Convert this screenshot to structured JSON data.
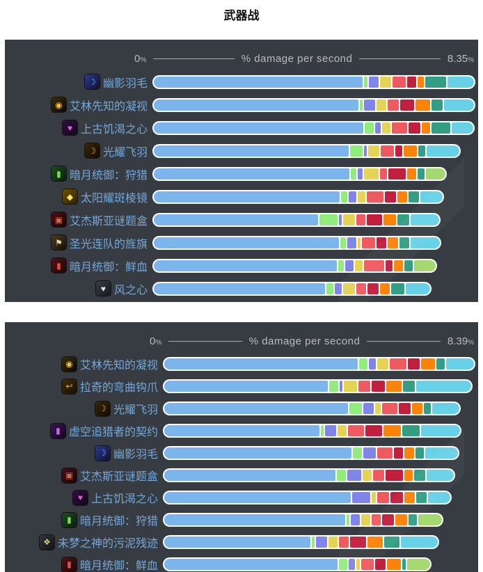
{
  "page": {
    "title": "武器战"
  },
  "chart_data": [
    {
      "type": "bar",
      "title": "% damage per second",
      "axis": {
        "min_label": "0",
        "max_label": "8.35",
        "suffix": "%"
      },
      "xlim": [
        0,
        8.35
      ],
      "grid": false,
      "legend": "none",
      "orientation": "horizontal-stacked",
      "palette": [
        "#7cb5ec",
        "#90ed7d",
        "#8085e9",
        "#e4d354",
        "#ef5a60",
        "#c11f3e",
        "#fb8309",
        "#349e84",
        "#68d1e7"
      ],
      "accent_colors": {
        "bar_border": "#ffffff",
        "background": "#373c42",
        "label": "#74a7d8",
        "axis_text": "#b9bcbe",
        "alt_last_segment": "#a6d871"
      },
      "items": [
        {
          "label": "幽影羽毛",
          "icon": {
            "name": "shadow-feather-icon",
            "glyph": "☽",
            "bg": "linear-gradient(135deg,#2a3c8f,#0c1130)",
            "fg": "#7db5f5"
          },
          "values": [
            5.44,
            0.14,
            0.29,
            0.32,
            0.38,
            0.27,
            0.2,
            0.58,
            0.72
          ]
        },
        {
          "label": "艾林先知的凝视",
          "icon": {
            "name": "seers-gaze-icon",
            "glyph": "◉",
            "bg": "linear-gradient(135deg,#3b2c0a,#0b0a08)",
            "fg": "#f5c33b"
          },
          "values": [
            5.34,
            0.11,
            0.32,
            0.29,
            0.32,
            0.41,
            0.4,
            0.34,
            0.81
          ]
        },
        {
          "label": "上古饥渴之心",
          "icon": {
            "name": "hungering-heart-icon",
            "glyph": "♥",
            "bg": "linear-gradient(135deg,#31103f,#12051c)",
            "fg": "#e95bd0"
          },
          "values": [
            5.46,
            0.27,
            0.18,
            0.25,
            0.45,
            0.34,
            0.25,
            0.52,
            0.6
          ]
        },
        {
          "label": "光耀飞羽",
          "icon": {
            "name": "radiant-feather-icon",
            "glyph": "☽",
            "bg": "linear-gradient(135deg,#3a2605,#120b02)",
            "fg": "#f2b13a"
          },
          "values": [
            5.09,
            0.36,
            0.09,
            0.32,
            0.38,
            0.22,
            0.38,
            0.22,
            0.87
          ]
        },
        {
          "label": "暗月统御：狩猎",
          "icon": {
            "name": "darkmoon-sigil-hunt-icon",
            "glyph": "▮",
            "bg": "linear-gradient(135deg,#1d4d20,#0a1f0c)",
            "fg": "#7ed957"
          },
          "values": [
            5.1,
            0.18,
            0.16,
            0.43,
            0.2,
            0.49,
            0.27,
            0.23,
            0.54
          ],
          "last_color": "#a6d871"
        },
        {
          "label": "太阳耀斑棱镜",
          "icon": {
            "name": "sunflare-prism-icon",
            "glyph": "◆",
            "bg": "linear-gradient(135deg,#6b5505,#2a2002)",
            "fg": "#ffe066"
          },
          "values": [
            4.85,
            0.2,
            0.23,
            0.23,
            0.47,
            0.34,
            0.29,
            0.29,
            0.63
          ]
        },
        {
          "label": "艾杰斯亚谜题盒",
          "icon": {
            "name": "puzzle-box-icon",
            "glyph": "▣",
            "bg": "linear-gradient(135deg,#4a1016,#1c0406)",
            "fg": "#d4694f"
          },
          "values": [
            4.29,
            0.51,
            0.11,
            0.34,
            0.27,
            0.43,
            0.36,
            0.34,
            0.79
          ]
        },
        {
          "label": "圣光连队的旌旗",
          "icon": {
            "name": "banner-icon",
            "glyph": "⚑",
            "bg": "linear-gradient(135deg,#4a3b22,#171008)",
            "fg": "#e8d5a5"
          },
          "values": [
            4.83,
            0.18,
            0.27,
            0.11,
            0.38,
            0.29,
            0.31,
            0.29,
            0.79
          ]
        },
        {
          "label": "暗月统御：鲜血",
          "icon": {
            "name": "darkmoon-sigil-blood-icon",
            "glyph": "▮",
            "bg": "linear-gradient(135deg,#4d1414,#1f0606)",
            "fg": "#e05252"
          },
          "values": [
            4.78,
            0.18,
            0.25,
            0.23,
            0.56,
            0.22,
            0.27,
            0.25,
            0.61
          ],
          "last_color": "#a6d871"
        },
        {
          "label": "风之心",
          "icon": {
            "name": "heart-of-wind-icon",
            "glyph": "♥",
            "bg": "linear-gradient(135deg,#3a3f46,#14161a)",
            "fg": "#dfe5ec"
          },
          "values": [
            4.47,
            0.22,
            0.22,
            0.34,
            0.29,
            0.32,
            0.29,
            0.38,
            0.67
          ]
        }
      ]
    },
    {
      "type": "bar",
      "title": "% damage per second",
      "axis": {
        "min_label": "0",
        "max_label": "8.39",
        "suffix": "%"
      },
      "xlim": [
        0,
        8.39
      ],
      "grid": false,
      "legend": "none",
      "orientation": "horizontal-stacked",
      "palette": [
        "#7cb5ec",
        "#90ed7d",
        "#8085e9",
        "#e4d354",
        "#ef5a60",
        "#c11f3e",
        "#fb8309",
        "#349e84",
        "#68d1e7"
      ],
      "accent_colors": {
        "bar_border": "#ffffff",
        "background": "#373c42",
        "label": "#74a7d8",
        "axis_text": "#b9bcbe",
        "alt_last_segment": "#a6d871"
      },
      "items": [
        {
          "label": "艾林先知的凝视",
          "icon": {
            "name": "seers-gaze-icon",
            "glyph": "◉",
            "bg": "linear-gradient(135deg,#3b2c0a,#0b0a08)",
            "fg": "#f5c33b"
          },
          "values": [
            5.24,
            0.26,
            0.24,
            0.32,
            0.49,
            0.37,
            0.41,
            0.26,
            0.79
          ]
        },
        {
          "label": "拉奇的弯曲钩爪",
          "icon": {
            "name": "curved-hook-icon",
            "glyph": "↩",
            "bg": "linear-gradient(135deg,#3f2e08,#161002)",
            "fg": "#e8b83a"
          },
          "values": [
            4.44,
            0.28,
            0.11,
            0.39,
            0.36,
            0.39,
            0.45,
            0.36,
            1.52
          ]
        },
        {
          "label": "光耀飞羽",
          "icon": {
            "name": "radiant-feather-icon",
            "glyph": "☽",
            "bg": "linear-gradient(135deg,#3a2605,#120b02)",
            "fg": "#f2b13a"
          },
          "values": [
            4.98,
            0.37,
            0.32,
            0.19,
            0.45,
            0.36,
            0.32,
            0.22,
            0.77
          ]
        },
        {
          "label": "虚空追猎者的契约",
          "icon": {
            "name": "void-pact-icon",
            "glyph": "▮",
            "bg": "linear-gradient(135deg,#3d1450,#150722)",
            "fg": "#c66be0"
          },
          "values": [
            4.21,
            0.11,
            0.34,
            0.28,
            0.47,
            0.49,
            0.51,
            0.49,
            1.09
          ]
        },
        {
          "label": "幽影羽毛",
          "icon": {
            "name": "shadow-feather-icon",
            "glyph": "☽",
            "bg": "linear-gradient(135deg,#2a3c8f,#0c1130)",
            "fg": "#7db5f5"
          },
          "values": [
            5.08,
            0.28,
            0.37,
            0,
            0.45,
            0.28,
            0.3,
            0.26,
            0.92
          ]
        },
        {
          "label": "艾杰斯亚谜题盒",
          "icon": {
            "name": "puzzle-box-icon",
            "glyph": "▣",
            "bg": "linear-gradient(135deg,#4a1016,#1c0406)",
            "fg": "#d4694f"
          },
          "values": [
            4.64,
            0.28,
            0.41,
            0.28,
            0.34,
            0.51,
            0.26,
            0.34,
            0.77
          ]
        },
        {
          "label": "上古饥渴之心",
          "icon": {
            "name": "hungering-heart-icon",
            "glyph": "♥",
            "bg": "linear-gradient(135deg,#31103f,#12051c)",
            "fg": "#e95bd0"
          },
          "values": [
            5.06,
            0,
            0.52,
            0.15,
            0.36,
            0.37,
            0.32,
            0.32,
            0.64
          ]
        },
        {
          "label": "暗月统御：狩猎",
          "icon": {
            "name": "darkmoon-sigil-hunt-icon",
            "glyph": "▮",
            "bg": "linear-gradient(135deg,#1d4d20,#0a1f0c)",
            "fg": "#7ed957"
          },
          "values": [
            4.91,
            0.09,
            0.28,
            0.28,
            0.28,
            0.36,
            0.36,
            0.26,
            0.67
          ],
          "last_color": "#a6d871"
        },
        {
          "label": "未梦之神的污泥残迹",
          "icon": {
            "name": "sludge-remnant-icon",
            "glyph": "❖",
            "bg": "linear-gradient(135deg,#33363b,#101214)",
            "fg": "#cfc87e"
          },
          "values": [
            3.97,
            0.11,
            0.34,
            0.28,
            0.3,
            0.47,
            0.45,
            0.45,
            1.03
          ]
        },
        {
          "label": "暗月统御：鲜血",
          "icon": {
            "name": "darkmoon-sigil-blood-icon",
            "glyph": "▮",
            "bg": "linear-gradient(135deg,#4d1414,#1f0606)",
            "fg": "#e05252"
          },
          "values": [
            4.7,
            0.26,
            0.21,
            0.13,
            0.37,
            0.32,
            0.41,
            0.13,
            0.67
          ],
          "last_color": "#a6d871"
        }
      ]
    }
  ]
}
